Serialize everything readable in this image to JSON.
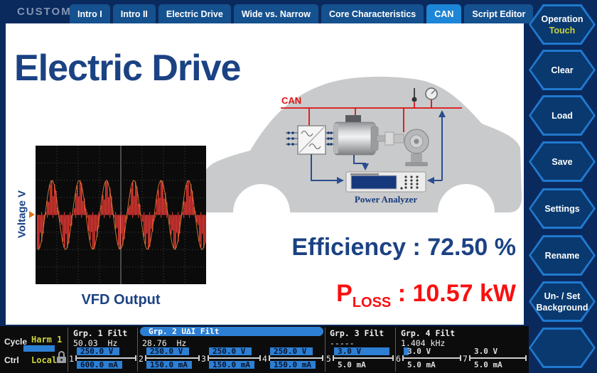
{
  "header": {
    "brand": "CUSTOM",
    "tabs": [
      {
        "label": "Intro I",
        "active": false
      },
      {
        "label": "Intro II",
        "active": false
      },
      {
        "label": "Electric Drive",
        "active": false
      },
      {
        "label": "Wide vs. Narrow",
        "active": false
      },
      {
        "label": "Core Characteristics",
        "active": false
      },
      {
        "label": "CAN",
        "active": true
      },
      {
        "label": "Script Editor",
        "active": false
      }
    ]
  },
  "side_buttons": {
    "operation": {
      "line1": "Operation",
      "line2": "Touch"
    },
    "clear": "Clear",
    "load": "Load",
    "save": "Save",
    "settings": "Settings",
    "rename": "Rename",
    "background": {
      "line1": "Un- / Set",
      "line2": "Background"
    },
    "empty": ""
  },
  "main": {
    "title": "Electric Drive",
    "scope": {
      "ylabel": "Voltage V",
      "caption": "VFD Output"
    },
    "diagram": {
      "can_label": "CAN",
      "analyzer_label": "Power Analyzer"
    },
    "efficiency_text": "Efficiency : 72.50 %",
    "ploss": {
      "base": "P",
      "sub": "LOSS",
      "rest": " : 10.57 kW"
    }
  },
  "colors": {
    "accent_blue": "#2d7fd4",
    "active_tab": "#1d86d6",
    "navy": "#1b4283",
    "alert_red": "#fa0f0f",
    "yellow": "#ccd23c"
  },
  "status": {
    "cycle": {
      "label": "Cycle",
      "value": "Harm 1"
    },
    "ctrl": {
      "label": "Ctrl",
      "value": "Local"
    },
    "groups": [
      {
        "name": "Grp. 1 Filt",
        "freq": "50.03  Hz"
      },
      {
        "name": "Grp. 2 U∆I Filt",
        "freq": "28.76  Hz"
      },
      {
        "name": "Grp. 3 Filt",
        "freq": "-----"
      },
      {
        "name": "Grp. 4 Filt",
        "freq": "1.404 kHz"
      }
    ],
    "channels": [
      {
        "num": "1",
        "v": "250.0 V",
        "a": "600.0 mA",
        "v_bar": 60,
        "a_bar": 64
      },
      {
        "num": "2",
        "v": "250.0 V",
        "a": "150.0 mA",
        "v_bar": 60,
        "a_bar": 64
      },
      {
        "num": "3",
        "v": "250.0 V",
        "a": "150.0 mA",
        "v_bar": 60,
        "a_bar": 64
      },
      {
        "num": "4",
        "v": "250.0 V",
        "a": "150.0 mA",
        "v_bar": 60,
        "a_bar": 64
      },
      {
        "num": "5",
        "v": "3.0 V",
        "a": "5.0 mA",
        "v_bar": 78,
        "a_bar": 0
      },
      {
        "num": "6",
        "v": "3.0 V",
        "a": "5.0 mA",
        "v_bar": 7,
        "a_bar": 0
      },
      {
        "num": "7",
        "v": "3.0 V",
        "a": "5.0 mA",
        "v_bar": 0,
        "a_bar": 0
      }
    ]
  }
}
